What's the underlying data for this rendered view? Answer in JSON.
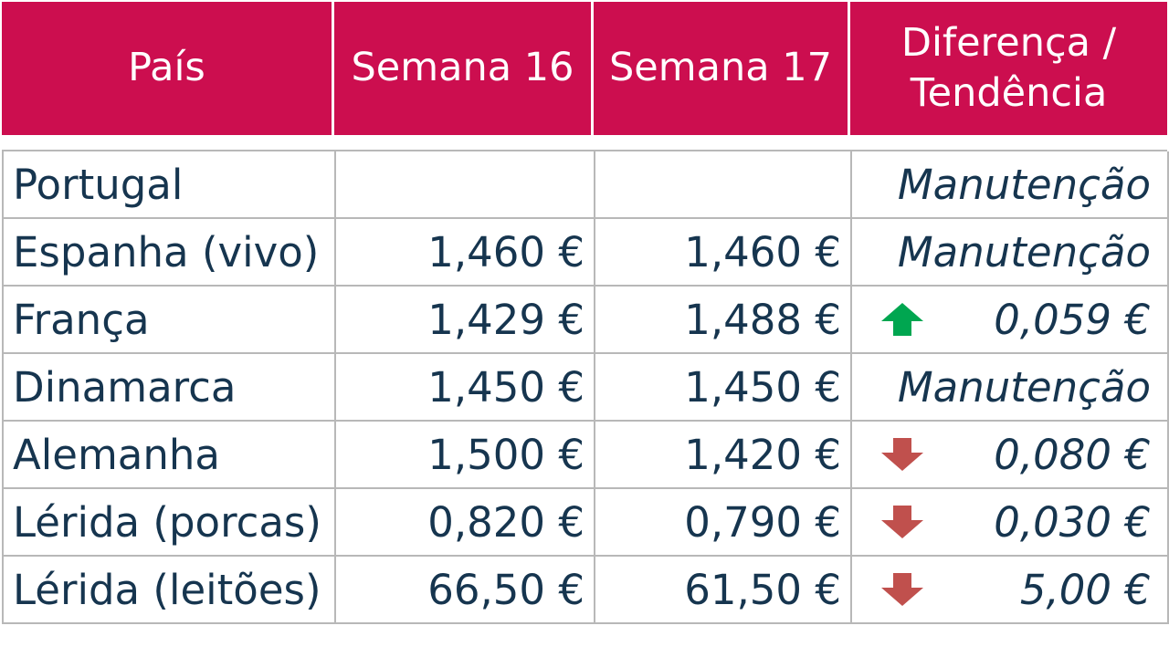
{
  "header": {
    "country_label": "País",
    "week16_label": "Semana 16",
    "week17_label": "Semana 17",
    "diff_line1": "Diferença /",
    "diff_line2": "Tendência"
  },
  "colors": {
    "header_bg": "#cc0e4f",
    "text": "#16354f",
    "arrow_up": "#00a650",
    "arrow_down": "#c0504d"
  },
  "rows": [
    {
      "country": "Portugal",
      "week16": "",
      "week17": "",
      "trend_icon": "none",
      "diff": "Manutenção"
    },
    {
      "country": "Espanha (vivo)",
      "week16": "1,460 €",
      "week17": "1,460 €",
      "trend_icon": "none",
      "diff": "Manutenção"
    },
    {
      "country": "França",
      "week16": "1,429 €",
      "week17": "1,488 €",
      "trend_icon": "arrow-up-icon",
      "diff": "0,059 €"
    },
    {
      "country": "Dinamarca",
      "week16": "1,450 €",
      "week17": "1,450 €",
      "trend_icon": "none",
      "diff": "Manutenção"
    },
    {
      "country": "Alemanha",
      "week16": "1,500 €",
      "week17": "1,420 €",
      "trend_icon": "arrow-down-icon",
      "diff": "0,080 €"
    },
    {
      "country": "Lérida (porcas)",
      "week16": "0,820 €",
      "week17": "0,790 €",
      "trend_icon": "arrow-down-icon",
      "diff": "0,030 €"
    },
    {
      "country": "Lérida (leitões)",
      "week16": "66,50 €",
      "week17": "61,50 €",
      "trend_icon": "arrow-down-icon",
      "diff": "5,00 €"
    }
  ]
}
